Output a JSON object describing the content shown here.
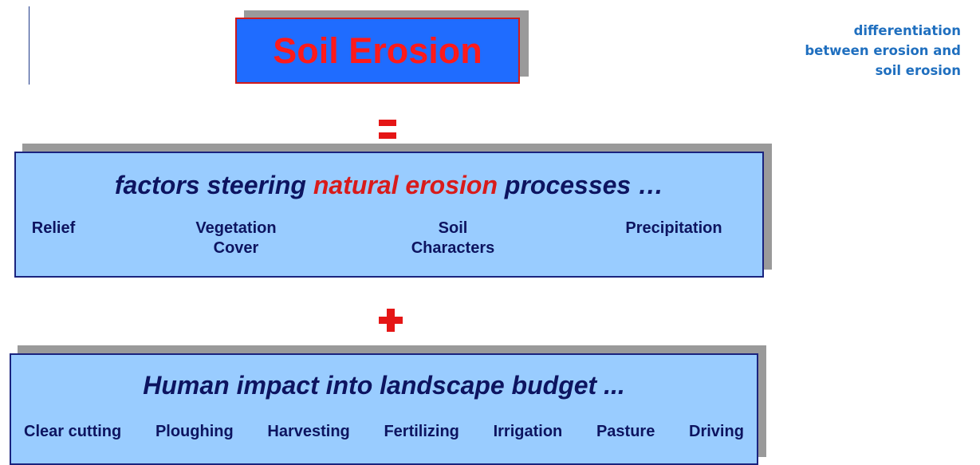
{
  "title": "Soil Erosion",
  "note": "differentiation between erosion and soil erosion",
  "natural_factors": {
    "heading": [
      "factors steering ",
      "natural erosion",
      " processes …"
    ],
    "items": [
      "Relief",
      "Vegetation Cover",
      "Soil Characters",
      "Precipitation"
    ]
  },
  "human_impact": {
    "heading": "Human impact into landscape budget ...",
    "items": [
      "Clear cutting",
      "Ploughing",
      "Harvesting",
      "Fertilizing",
      "Irrigation",
      "Pasture",
      "Driving"
    ]
  }
}
